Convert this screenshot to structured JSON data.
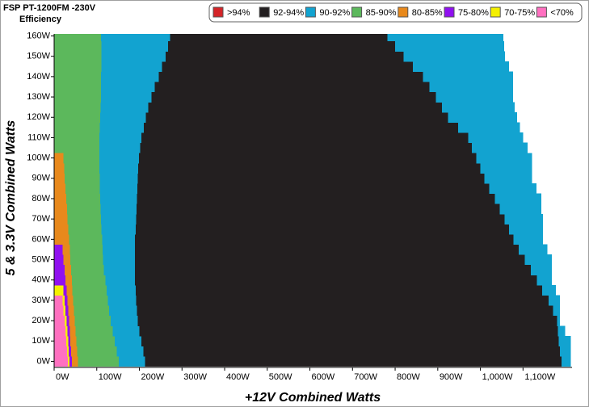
{
  "chart_data": {
    "type": "efficiency-map",
    "title": "FSP PT-1200FM -230V",
    "subtitle": "Efficiency",
    "x_label": "+12V Combined Watts",
    "y_label": "5 & 3.3V Combined Watts",
    "legend": [
      {
        "name": ">94%",
        "color": "#d42428"
      },
      {
        "name": "92-94%",
        "color": "#231f20"
      },
      {
        "name": "90-92%",
        "color": "#12a3d0"
      },
      {
        "name": "85-90%",
        "color": "#5cb85c"
      },
      {
        "name": "80-85%",
        "color": "#e8891c"
      },
      {
        "name": "75-80%",
        "color": "#9010f0"
      },
      {
        "name": "70-75%",
        "color": "#f4f000"
      },
      {
        "name": "<70%",
        "color": "#ff70c0"
      }
    ],
    "xlim": [
      0,
      1215
    ],
    "ylim": [
      -3,
      161
    ],
    "xticks": [
      {
        "value": 0,
        "label": "0W"
      },
      {
        "value": 100,
        "label": "100W"
      },
      {
        "value": 200,
        "label": "200W"
      },
      {
        "value": 300,
        "label": "300W"
      },
      {
        "value": 400,
        "label": "400W"
      },
      {
        "value": 500,
        "label": "500W"
      },
      {
        "value": 600,
        "label": "600W"
      },
      {
        "value": 700,
        "label": "700W"
      },
      {
        "value": 800,
        "label": "800W"
      },
      {
        "value": 900,
        "label": "900W"
      },
      {
        "value": 1000,
        "label": "1,000W"
      },
      {
        "value": 1100,
        "label": "1,100W"
      }
    ],
    "yticks": [
      {
        "value": 0,
        "label": "0W"
      },
      {
        "value": 10,
        "label": "10W"
      },
      {
        "value": 20,
        "label": "20W"
      },
      {
        "value": 30,
        "label": "30W"
      },
      {
        "value": 40,
        "label": "40W"
      },
      {
        "value": 50,
        "label": "50W"
      },
      {
        "value": 60,
        "label": "60W"
      },
      {
        "value": 70,
        "label": "70W"
      },
      {
        "value": 80,
        "label": "80W"
      },
      {
        "value": 90,
        "label": "90W"
      },
      {
        "value": 100,
        "label": "100W"
      },
      {
        "value": 110,
        "label": "110W"
      },
      {
        "value": 120,
        "label": "120W"
      },
      {
        "value": 130,
        "label": "130W"
      },
      {
        "value": 140,
        "label": "140W"
      },
      {
        "value": 150,
        "label": "150W"
      },
      {
        "value": 160,
        "label": "160W"
      }
    ],
    "row_height": 5,
    "rows": [
      0,
      5,
      10,
      15,
      20,
      25,
      30,
      35,
      40,
      45,
      50,
      55,
      60,
      65,
      70,
      75,
      80,
      85,
      90,
      95,
      100,
      105,
      110,
      115,
      120,
      125,
      130,
      135,
      140,
      145,
      150,
      155,
      160
    ],
    "layers": [
      {
        "band": 7,
        "values": [
          32,
          30,
          28,
          27,
          25,
          22,
          20,
          null,
          null,
          null,
          null,
          null,
          null,
          null,
          null,
          null,
          null,
          null,
          null,
          null,
          null,
          null,
          null,
          null,
          null,
          null,
          null,
          null,
          null,
          null,
          null,
          null,
          null
        ]
      },
      {
        "band": 6,
        "values": [
          36,
          34,
          33,
          31,
          29,
          27,
          25,
          22,
          null,
          null,
          null,
          null,
          null,
          null,
          null,
          null,
          null,
          null,
          null,
          null,
          null,
          null,
          null,
          null,
          null,
          null,
          null,
          null,
          null,
          null,
          null,
          null,
          null
        ]
      },
      {
        "band": 5,
        "values": [
          42,
          40,
          38,
          37,
          35,
          33,
          31,
          29,
          27,
          25,
          22,
          20,
          null,
          null,
          null,
          null,
          null,
          null,
          null,
          null,
          null,
          null,
          null,
          null,
          null,
          null,
          null,
          null,
          null,
          null,
          null,
          null,
          null
        ]
      },
      {
        "band": 4,
        "values": [
          56,
          54,
          52,
          50,
          48,
          46,
          45,
          43,
          42,
          40,
          38,
          37,
          35,
          33,
          31,
          30,
          28,
          27,
          25,
          24,
          22,
          null,
          null,
          null,
          null,
          null,
          null,
          null,
          null,
          null,
          null,
          null,
          null
        ]
      },
      {
        "band": 3,
        "values": [
          152,
          147,
          142,
          137,
          133,
          129,
          126,
          123,
          120,
          117,
          115,
          114,
          113,
          111,
          110,
          109,
          108,
          107,
          107,
          106,
          106,
          106,
          106,
          107,
          108,
          109,
          110,
          110,
          110,
          111,
          111,
          111,
          110
        ]
      },
      {
        "band": 2,
        "values": [
          213,
          209,
          205,
          200,
          196,
          194,
          192,
          191,
          190,
          190,
          190,
          190,
          190,
          191,
          192,
          193,
          194,
          195,
          196,
          197,
          199,
          202,
          205,
          210,
          215,
          221,
          228,
          236,
          245,
          253,
          262,
          267,
          272
        ]
      },
      {
        "band": 1,
        "values": [
          1190,
          1187,
          1184,
          1182,
          1180,
          1170,
          1160,
          1145,
          1133,
          1118,
          1104,
          1090,
          1078,
          1067,
          1057,
          1045,
          1034,
          1021,
          1009,
          1000,
          990,
          980,
          971,
          948,
          924,
          910,
          896,
          880,
          865,
          842,
          820,
          800,
          782
        ]
      },
      {
        "band": 2,
        "values": [
          1211,
          1211,
          1211,
          1198,
          1186,
          1186,
          1186,
          1176,
          1167,
          1167,
          1167,
          1156,
          1146,
          1146,
          1146,
          1142,
          1142,
          1131,
          1120,
          1120,
          1120,
          1110,
          1100,
          1092,
          1085,
          1080,
          1076,
          1076,
          1076,
          1066,
          1057,
          1055,
          1053
        ]
      }
    ]
  }
}
